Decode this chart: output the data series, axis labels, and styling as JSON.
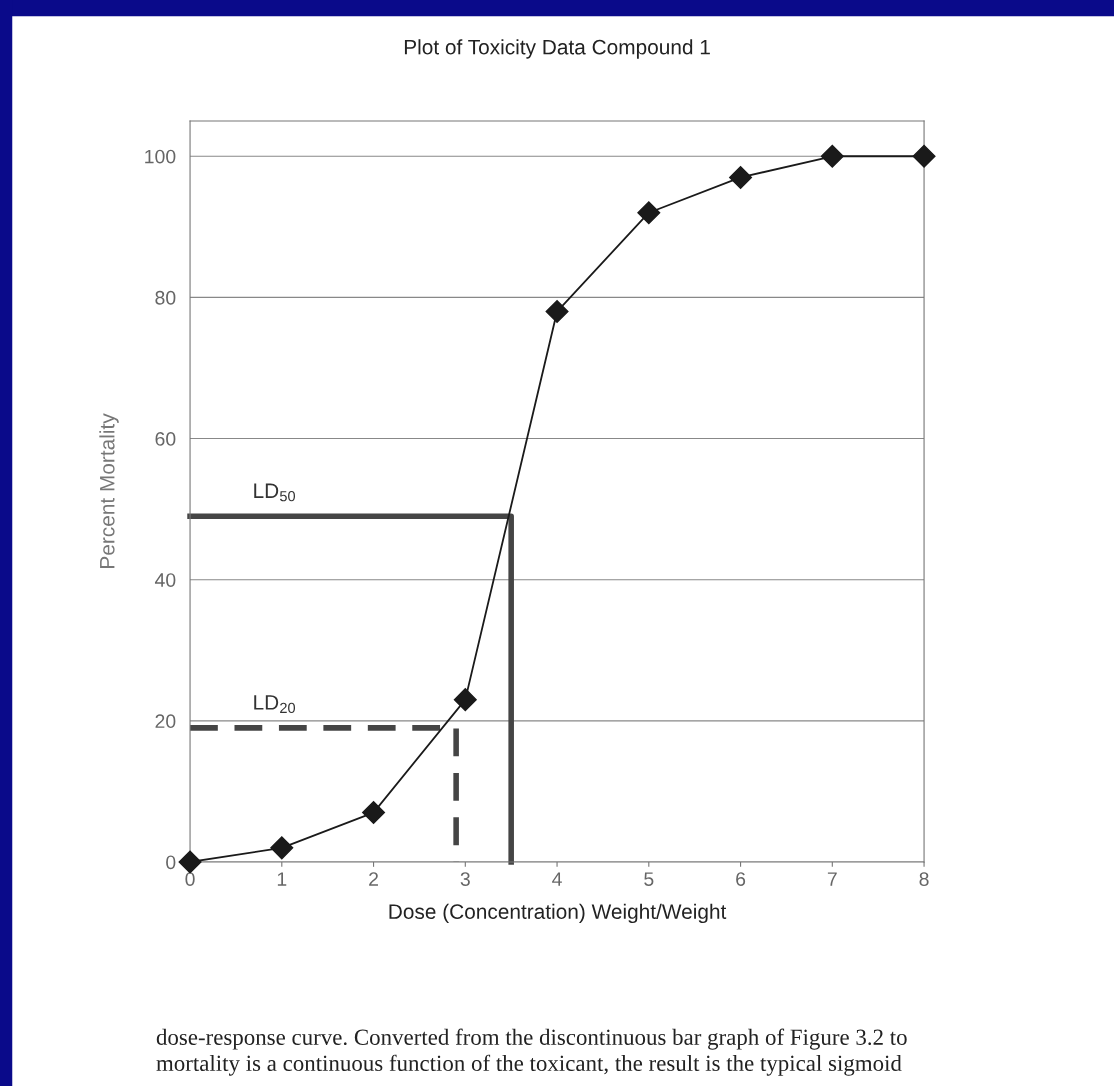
{
  "chart_data": {
    "type": "line",
    "title": "Plot of Toxicity Data Compound 1",
    "xlabel": "Dose (Concentration) Weight/Weight",
    "ylabel": "Percent Mortality",
    "x": [
      0,
      1,
      2,
      3,
      4,
      5,
      6,
      7,
      8
    ],
    "series": [
      {
        "color": "#1a1a1a",
        "marker": "diamond",
        "line_style": "solid",
        "values": [
          0,
          2,
          7,
          23,
          78,
          92,
          97,
          100,
          100
        ]
      },
      {
        "name": "LD$_{50}$",
        "color": "#454545",
        "marker": "none",
        "line_style": "solid",
        "x": [
          0,
          3.5,
          3.5
        ],
        "values": [
          49,
          49,
          0
        ]
      },
      {
        "name": "LD$_{20}$",
        "color": "#454545",
        "marker": "none",
        "line_style": "dashed",
        "x": [
          0,
          2.9,
          2.9
        ],
        "values": [
          19,
          19,
          0
        ]
      }
    ],
    "xlim": [
      0,
      8
    ],
    "xticks": [
      0,
      1,
      2,
      3,
      4,
      5,
      6,
      7,
      8
    ],
    "ylim": [
      0,
      105
    ],
    "yticks": [
      0,
      20,
      40,
      60,
      80,
      100
    ],
    "grid": "y",
    "legend": false,
    "annotations": [
      "dose-response curve. Converted from the discontinuous bar graph of Figure 3.2 to",
      "mortality is a continuous function of the toxicant, the result is the typical sigmoid"
    ]
  }
}
